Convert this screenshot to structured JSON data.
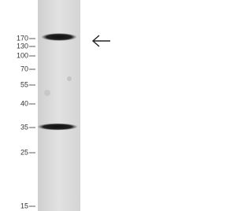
{
  "markers": [
    "170",
    "130",
    "100",
    "70",
    "55",
    "40",
    "35",
    "25",
    "15"
  ]
}
